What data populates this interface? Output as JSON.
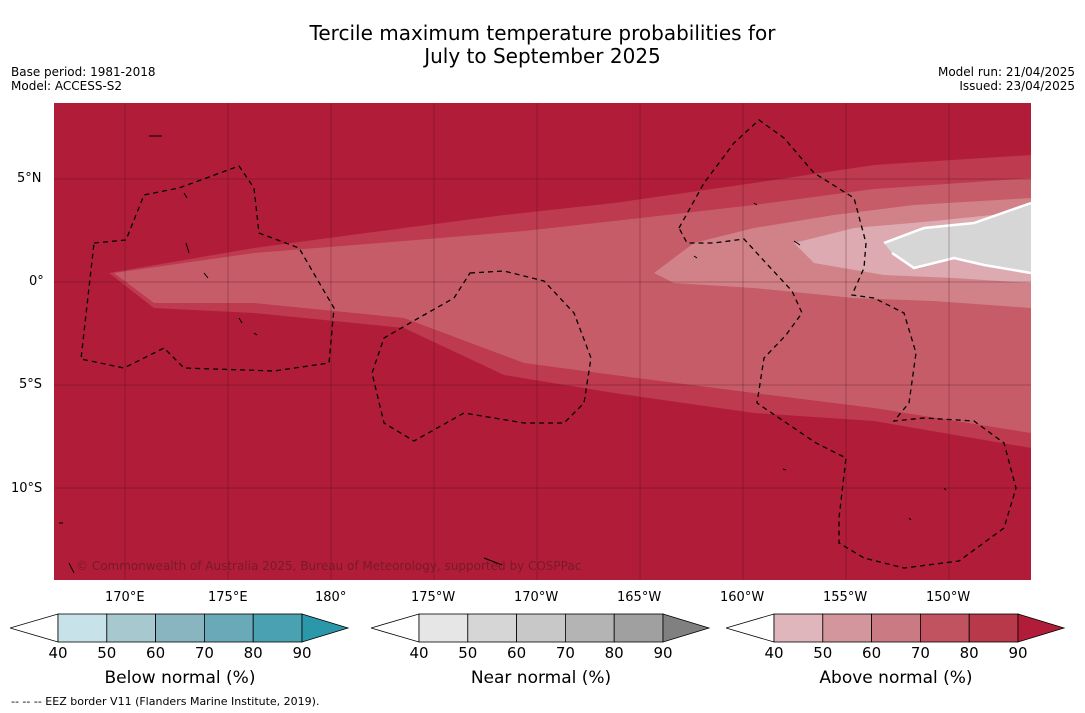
{
  "title": {
    "line1": "Tercile maximum temperature probabilities for",
    "line2": "July to September 2025"
  },
  "meta": {
    "base_period": "Base period: 1981-2018",
    "model": "Model: ACCESS-S2",
    "model_run": "Model run: 21/04/2025",
    "issued": "Issued: 23/04/2025"
  },
  "map": {
    "lat_labels": [
      "5°N",
      "0°",
      "5°S",
      "10°S"
    ],
    "lon_labels": [
      "170°E",
      "175°E",
      "180°",
      "175°W",
      "170°W",
      "165°W",
      "160°W",
      "155°W",
      "150°W"
    ],
    "copyright": "© Commonwealth of Australia 2025, Bureau of Meteorology, supported by COSPPac",
    "colors": {
      "above_90": "#b11d39",
      "above_80": "#bd3a4f",
      "above_70": "#c75c69",
      "above_60": "#d18288",
      "above_50": "#dcaab0",
      "near_normal": "#d6d6d6"
    }
  },
  "colorbars": {
    "below": {
      "label": "Below normal (%)",
      "ticks": [
        "40",
        "50",
        "60",
        "70",
        "80",
        "90"
      ],
      "colors": [
        "#ffffff",
        "#c7e2e8",
        "#a8c8cf",
        "#89b5c1",
        "#6aaab8",
        "#4aa1b1",
        "#2b98aa"
      ]
    },
    "near": {
      "label": "Near normal (%)",
      "ticks": [
        "40",
        "50",
        "60",
        "70",
        "80",
        "90"
      ],
      "colors": [
        "#ffffff",
        "#e6e6e6",
        "#d6d6d6",
        "#c8c8c8",
        "#b4b4b4",
        "#a0a0a0",
        "#808080"
      ]
    },
    "above": {
      "label": "Above normal (%)",
      "ticks": [
        "40",
        "50",
        "60",
        "70",
        "80",
        "90"
      ],
      "colors": [
        "#ffffff",
        "#e0b6bd",
        "#d3969c",
        "#c97a82",
        "#c0535f",
        "#b8394a",
        "#b11d39"
      ]
    }
  },
  "footer": "--  --  -- EEZ border V11 (Flanders Marine Institute, 2019)."
}
